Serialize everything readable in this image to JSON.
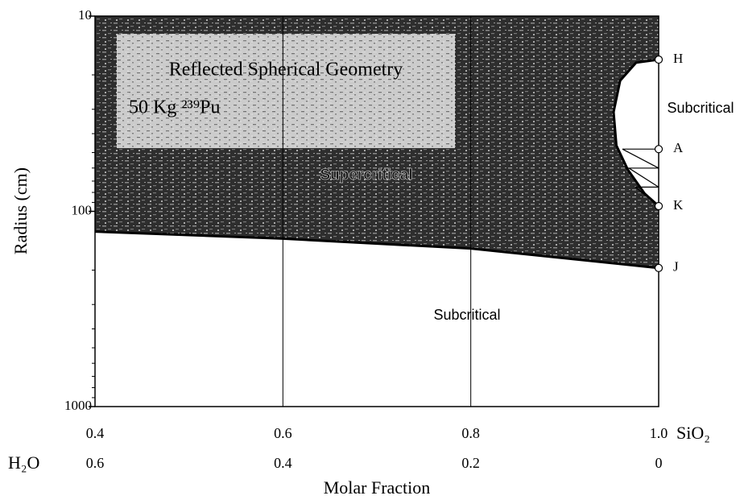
{
  "chart_data": {
    "type": "line",
    "title": "Reflected Spherical Geometry",
    "subtitle": "50 Kg ²³⁹Pu",
    "xlabel": "Molar Fraction",
    "ylabel": "Radius (cm)",
    "x_name": "SiO₂",
    "x2_name": "H₂O",
    "xlim": [
      0.4,
      1.0
    ],
    "xticks": [
      0.4,
      0.6,
      0.8,
      {
        "value": 1.0,
        "label": "1.0"
      }
    ],
    "x2lim": [
      0.6,
      0
    ],
    "x2ticks": [
      0.6,
      0.4,
      0.2,
      0
    ],
    "ylim": [
      10,
      1000
    ],
    "yscale": "log",
    "yinverted": true,
    "yticks": [
      10,
      100,
      1000
    ],
    "yminorticks": [
      20,
      30,
      40,
      50,
      60,
      70,
      80,
      90,
      200,
      300,
      400,
      500,
      600,
      700,
      800,
      900
    ],
    "grid": "x",
    "regions": [
      "Supercritical",
      "Subcritical",
      "Subcritical"
    ],
    "series": [
      {
        "color": "#000000",
        "x": [
          0.4,
          0.6,
          0.8,
          1.0
        ],
        "values": [
          127,
          138,
          155,
          195
        ]
      },
      {
        "color": "#000000",
        "x": [
          1.0,
          0.976,
          0.959,
          0.952,
          0.955,
          0.967,
          0.985,
          1.0
        ],
        "values": [
          16.7,
          17.3,
          21.4,
          31,
          46,
          61,
          81,
          94
        ]
      }
    ],
    "points": {
      "labels": [
        "H",
        "A",
        "K",
        "J"
      ],
      "x": [
        1.0,
        1.0,
        1.0,
        1.0
      ],
      "values": [
        16.7,
        48,
        94,
        195
      ]
    }
  }
}
